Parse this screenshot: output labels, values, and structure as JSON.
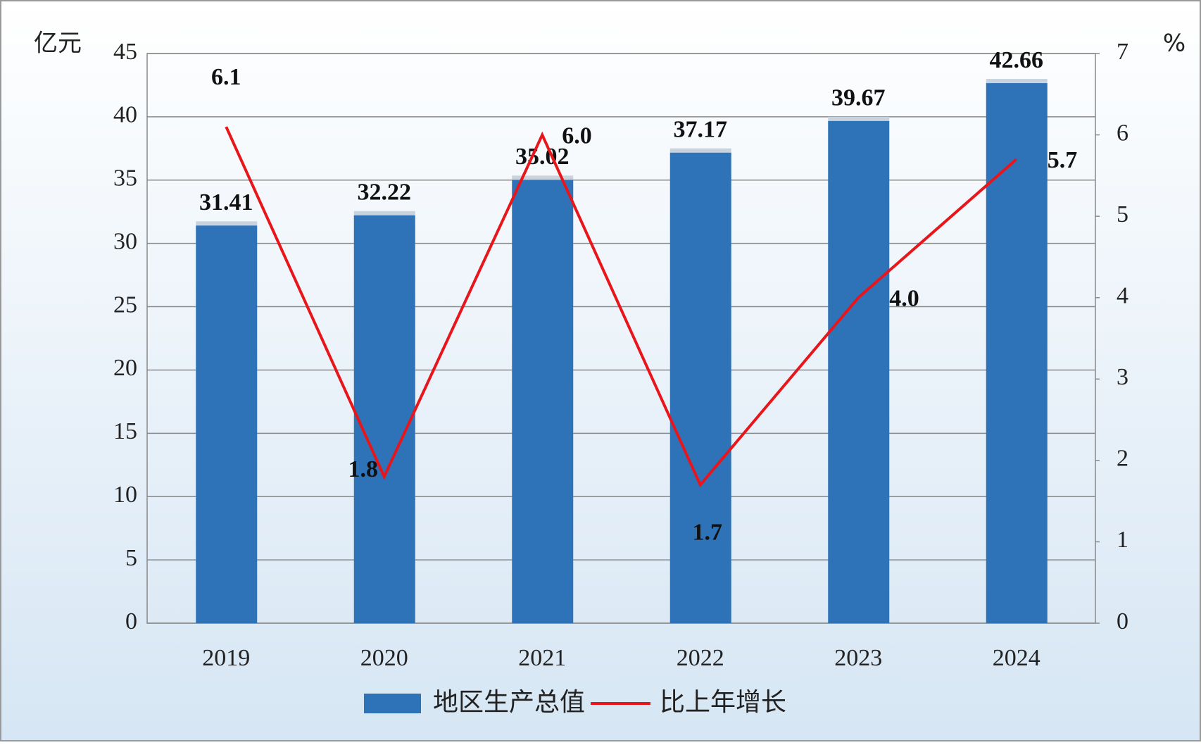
{
  "chart_data": {
    "type": "bar-line",
    "y_label": "亿元",
    "y2_label": "%",
    "categories": [
      "2019",
      "2020",
      "2021",
      "2022",
      "2023",
      "2024"
    ],
    "series": [
      {
        "name": "地区生产总值",
        "color": "#2e72b8",
        "type": "bar",
        "values": [
          31.41,
          32.22,
          35.02,
          37.17,
          39.67,
          42.66
        ]
      },
      {
        "name": "比上年增长",
        "color": "#e8161b",
        "type": "line",
        "axis": "y2",
        "values": [
          6.1,
          1.8,
          6.0,
          1.7,
          4.0,
          5.7
        ],
        "value_labels": [
          "6.1",
          "1.8",
          "6.0",
          "1.7",
          "4.0",
          "5.7"
        ]
      }
    ],
    "ylim": [
      0,
      45
    ],
    "yticks": [
      0,
      5,
      10,
      15,
      20,
      25,
      30,
      35,
      40,
      45
    ],
    "y2lim": [
      0,
      7
    ],
    "y2ticks": [
      0,
      1,
      2,
      3,
      4,
      5,
      6,
      7
    ],
    "grid": true
  }
}
